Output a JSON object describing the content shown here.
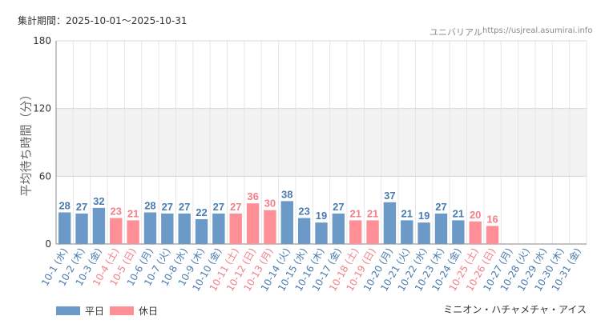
{
  "header": {
    "period": "集計期間：2025-10-01～2025-10-31",
    "site_name": "ユニバリアル",
    "site_url": "https://usjreal.asumirai.info"
  },
  "footer": {
    "attraction": "ミニオン・ハチャメチャ・アイス"
  },
  "colors": {
    "weekday": "#6b9ac9",
    "holiday": "#ff8f97",
    "weekday_text": "#4a7bb0",
    "holiday_text": "#f27f87",
    "band": "#f2f2f2",
    "grid": "#e6e6e6",
    "axis": "#888888"
  },
  "chart_data": {
    "type": "bar",
    "ylabel": "平均待ち時間（分）",
    "ylim": [
      0,
      180
    ],
    "yticks": [
      0,
      60,
      120,
      180
    ],
    "band": [
      60,
      120
    ],
    "grid": true,
    "legend_position": "bottom-left",
    "legend": [
      {
        "label": "平日",
        "kind": "weekday"
      },
      {
        "label": "休日",
        "kind": "holiday"
      }
    ],
    "categories": [
      "10-1 (水)",
      "10-2 (木)",
      "10-3 (金)",
      "10-4 (土)",
      "10-5 (日)",
      "10-6 (月)",
      "10-7 (火)",
      "10-8 (水)",
      "10-9 (木)",
      "10-10 (金)",
      "10-11 (土)",
      "10-12 (日)",
      "10-13 (月)",
      "10-14 (火)",
      "10-15 (水)",
      "10-16 (木)",
      "10-17 (金)",
      "10-18 (土)",
      "10-19 (日)",
      "10-20 (月)",
      "10-21 (火)",
      "10-22 (水)",
      "10-23 (木)",
      "10-24 (金)",
      "10-25 (土)",
      "10-26 (日)",
      "10-27 (月)",
      "10-28 (火)",
      "10-29 (水)",
      "10-30 (木)",
      "10-31 (金)"
    ],
    "kinds": [
      "weekday",
      "weekday",
      "weekday",
      "holiday",
      "holiday",
      "weekday",
      "weekday",
      "weekday",
      "weekday",
      "weekday",
      "holiday",
      "holiday",
      "holiday",
      "weekday",
      "weekday",
      "weekday",
      "weekday",
      "holiday",
      "holiday",
      "weekday",
      "weekday",
      "weekday",
      "weekday",
      "weekday",
      "holiday",
      "holiday",
      "weekday",
      "weekday",
      "weekday",
      "weekday",
      "weekday"
    ],
    "values": [
      28,
      27,
      32,
      23,
      21,
      28,
      27,
      27,
      22,
      27,
      27,
      36,
      30,
      38,
      23,
      19,
      27,
      21,
      21,
      37,
      21,
      19,
      27,
      21,
      20,
      16,
      null,
      null,
      null,
      null,
      null
    ]
  }
}
